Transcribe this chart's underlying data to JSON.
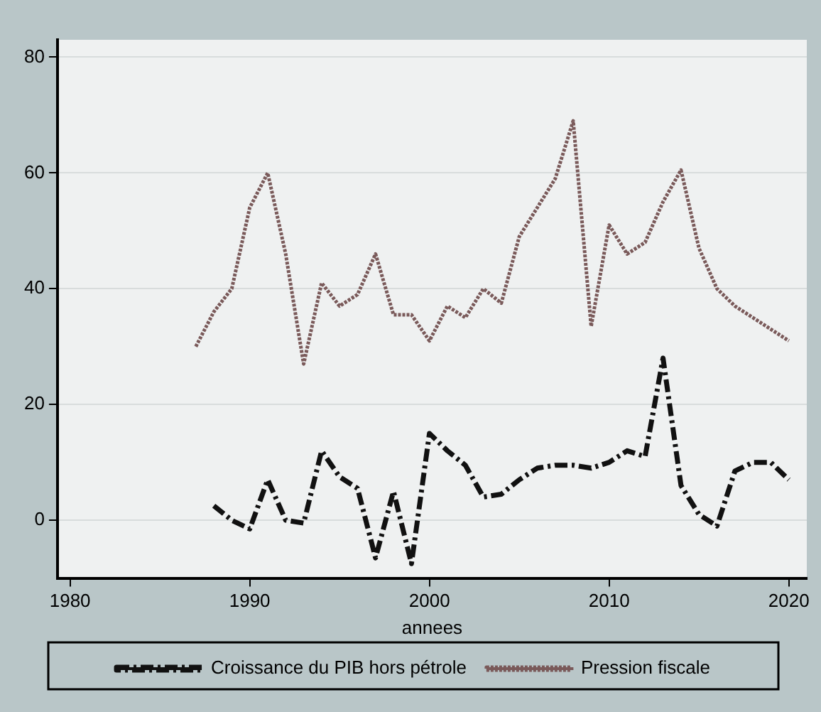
{
  "chart_data": {
    "type": "line",
    "xlabel": "annees",
    "x": [
      1987,
      1988,
      1989,
      1990,
      1991,
      1992,
      1993,
      1994,
      1995,
      1996,
      1997,
      1998,
      1999,
      2000,
      2001,
      2002,
      2003,
      2004,
      2005,
      2006,
      2007,
      2008,
      2009,
      2010,
      2011,
      2012,
      2013,
      2014,
      2015,
      2016,
      2017,
      2018,
      2019,
      2020
    ],
    "series": [
      {
        "name": "Croissance du PIB hors pétrole",
        "color": "#111111",
        "line_style": "dashed",
        "values": [
          null,
          2.5,
          0,
          -1.5,
          7,
          0,
          -0.5,
          12,
          7.5,
          5.5,
          -6.5,
          5,
          -7.5,
          15,
          12,
          9.5,
          4,
          4.5,
          7,
          9,
          9.5,
          9.5,
          9,
          10,
          12,
          11,
          28,
          6,
          1,
          -1,
          8.5,
          10,
          10,
          7
        ]
      },
      {
        "name": "Pression fiscale",
        "color": "#7a5a5a",
        "line_style": "dotted",
        "values": [
          30,
          36,
          40,
          54,
          60,
          46,
          27,
          41,
          37,
          39,
          46,
          35.5,
          35.5,
          31,
          37,
          35,
          40,
          37.5,
          49,
          54,
          59,
          69,
          33.5,
          51,
          46,
          48,
          55,
          60.5,
          47,
          40,
          37,
          35,
          33,
          31
        ]
      }
    ],
    "xlim": [
      1979.3,
      2021
    ],
    "xticks": [
      1980,
      1990,
      2000,
      2010,
      2020
    ],
    "ylim": [
      -10,
      83
    ],
    "yticks": [
      0,
      20,
      40,
      60,
      80
    ],
    "grid": "y",
    "legend": "bottom",
    "marker": "none"
  }
}
